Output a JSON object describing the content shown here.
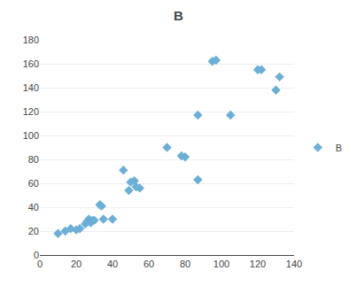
{
  "chart_data": {
    "type": "scatter",
    "title": "B",
    "x": [
      10,
      14,
      17,
      20,
      22,
      25,
      26,
      27,
      28,
      29,
      30,
      33,
      34,
      35,
      40,
      46,
      49,
      50,
      52,
      53,
      55,
      70,
      78,
      80,
      87,
      87,
      95,
      97,
      105,
      120,
      122,
      130,
      132
    ],
    "series": [
      {
        "name": "B",
        "color": "#6BAED6",
        "marker": "diamond",
        "values": [
          18,
          20,
          22,
          21,
          22,
          26,
          28,
          30,
          27,
          29,
          29,
          42,
          41,
          30,
          30,
          71,
          54,
          61,
          62,
          57,
          56,
          90,
          83,
          82,
          117,
          63,
          162,
          163,
          117,
          155,
          155,
          138,
          149
        ]
      }
    ],
    "xlim": [
      0,
      140
    ],
    "xticks": [
      0,
      20,
      40,
      60,
      80,
      100,
      120,
      140
    ],
    "ylim": [
      0,
      180
    ],
    "yticks": [
      0,
      20,
      40,
      60,
      80,
      100,
      120,
      140,
      160,
      180
    ],
    "grid": "y",
    "legend": "right"
  }
}
